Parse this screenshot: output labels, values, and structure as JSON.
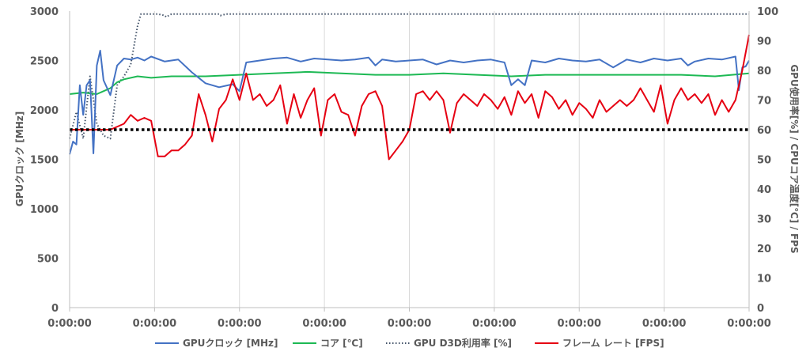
{
  "chart_data": {
    "type": "line",
    "title": "",
    "y_left": {
      "label": "GPUクロック [MHz]",
      "min": 0,
      "max": 3000,
      "ticks": [
        "0",
        "500",
        "1000",
        "1500",
        "2000",
        "2500",
        "3000"
      ]
    },
    "y_right": {
      "label": "GPU使用率[%] / CPUコア温度[℃] / FPS",
      "min": 0,
      "max": 100,
      "ticks": [
        "0",
        "10",
        "20",
        "30",
        "40",
        "50",
        "60",
        "70",
        "80",
        "90",
        "100"
      ]
    },
    "x_tick_labels": [
      "0:00:00",
      "0:00:00",
      "0:00:00",
      "0:00:00",
      "0:00:00",
      "0:00:00",
      "0:00:00",
      "0:00:00",
      "0:00:00"
    ],
    "grid": "vertical",
    "legend_position": "bottom",
    "reference_line": {
      "axis": "right",
      "value": 60,
      "style": "dotted-black"
    },
    "series": [
      {
        "name": "GPUクロック [MHz]",
        "axis": "left",
        "color": "#4472C4",
        "style": "solid",
        "t": [
          0,
          0.5,
          1,
          1.5,
          2,
          2.5,
          3,
          3.5,
          4,
          4.5,
          5,
          6,
          7,
          8,
          9,
          10,
          11,
          12,
          14,
          16,
          18,
          20,
          22,
          24,
          25,
          26,
          28,
          30,
          32,
          34,
          36,
          38,
          40,
          42,
          44,
          45,
          46,
          48,
          50,
          52,
          54,
          56,
          58,
          60,
          62,
          64,
          65,
          66,
          67,
          68,
          70,
          72,
          74,
          76,
          78,
          80,
          82,
          84,
          86,
          88,
          90,
          91,
          92,
          94,
          96,
          98,
          98.5,
          99,
          99.5,
          100
        ],
        "values": [
          1550,
          1680,
          1650,
          2250,
          1950,
          2250,
          2300,
          1560,
          2450,
          2600,
          2300,
          2150,
          2450,
          2520,
          2510,
          2530,
          2500,
          2540,
          2490,
          2510,
          2380,
          2270,
          2230,
          2260,
          2190,
          2480,
          2500,
          2520,
          2530,
          2490,
          2520,
          2510,
          2500,
          2510,
          2530,
          2450,
          2510,
          2490,
          2500,
          2510,
          2460,
          2500,
          2480,
          2500,
          2510,
          2480,
          2250,
          2310,
          2250,
          2500,
          2480,
          2520,
          2500,
          2490,
          2510,
          2430,
          2510,
          2480,
          2520,
          2500,
          2520,
          2450,
          2490,
          2520,
          2510,
          2540,
          2200,
          2430,
          2440,
          2500
        ]
      },
      {
        "name": "コア [℃]",
        "axis": "right",
        "color": "#1DB954",
        "style": "solid",
        "t": [
          0,
          2,
          4,
          6,
          7,
          8,
          10,
          12,
          15,
          20,
          25,
          30,
          35,
          40,
          45,
          50,
          55,
          60,
          65,
          70,
          75,
          80,
          85,
          90,
          95,
          100
        ],
        "values": [
          72,
          72.5,
          72,
          74,
          76,
          77,
          78,
          77.5,
          78,
          78,
          78.5,
          79,
          79.5,
          79,
          78.5,
          78.5,
          79,
          78.5,
          78,
          78.5,
          78.5,
          78.5,
          78.5,
          78.5,
          78,
          79
        ]
      },
      {
        "name": "GPU D3D利用率 [%]",
        "axis": "right",
        "color": "#44546A",
        "style": "dotted",
        "t": [
          0,
          1,
          2,
          3,
          4,
          5,
          6,
          7,
          8,
          8.5,
          9,
          10,
          10.5,
          12,
          13,
          14,
          14.2,
          15,
          20,
          22,
          22.2,
          23,
          30,
          40,
          50,
          60,
          70,
          80,
          90,
          100
        ],
        "values": [
          57,
          66,
          57,
          78,
          62,
          58,
          57,
          75,
          78,
          80,
          82,
          95,
          99,
          99,
          99,
          98.5,
          98,
          99,
          99,
          99,
          98.5,
          99,
          99,
          99,
          99,
          99,
          99,
          99,
          99,
          99
        ]
      },
      {
        "name": "フレーム レート [FPS]",
        "axis": "right",
        "color": "#E60012",
        "style": "solid",
        "t": [
          0,
          2,
          4,
          6,
          8,
          9,
          10,
          11,
          12,
          13,
          14,
          15,
          16,
          17,
          18,
          19,
          20,
          21,
          22,
          23,
          24,
          25,
          26,
          27,
          28,
          29,
          30,
          31,
          32,
          33,
          34,
          35,
          36,
          37,
          38,
          39,
          40,
          41,
          42,
          43,
          44,
          45,
          46,
          47,
          48,
          49,
          50,
          51,
          52,
          53,
          54,
          55,
          56,
          57,
          58,
          59,
          60,
          61,
          62,
          63,
          64,
          65,
          66,
          67,
          68,
          69,
          70,
          71,
          72,
          73,
          74,
          75,
          76,
          77,
          78,
          79,
          80,
          81,
          82,
          83,
          84,
          85,
          86,
          87,
          88,
          89,
          90,
          91,
          92,
          93,
          94,
          95,
          96,
          97,
          98,
          99,
          100
        ],
        "values": [
          60,
          60,
          60,
          60,
          62,
          65,
          63,
          64,
          63,
          51,
          51,
          53,
          53,
          55,
          58,
          72,
          65,
          56,
          67,
          70,
          77,
          70,
          79,
          70,
          72,
          68,
          70,
          75,
          62,
          72,
          64,
          70,
          74,
          58,
          70,
          72,
          66,
          65,
          58,
          68,
          72,
          73,
          68,
          50,
          53,
          56,
          60,
          72,
          73,
          70,
          73,
          70,
          59,
          69,
          72,
          70,
          68,
          72,
          70,
          67,
          71,
          65,
          73,
          69,
          72,
          64,
          73,
          71,
          67,
          70,
          65,
          69,
          67,
          64,
          70,
          66,
          68,
          70,
          68,
          70,
          74,
          70,
          66,
          75,
          62,
          70,
          74,
          70,
          72,
          69,
          72,
          65,
          70,
          66,
          70,
          80,
          92
        ]
      }
    ]
  }
}
